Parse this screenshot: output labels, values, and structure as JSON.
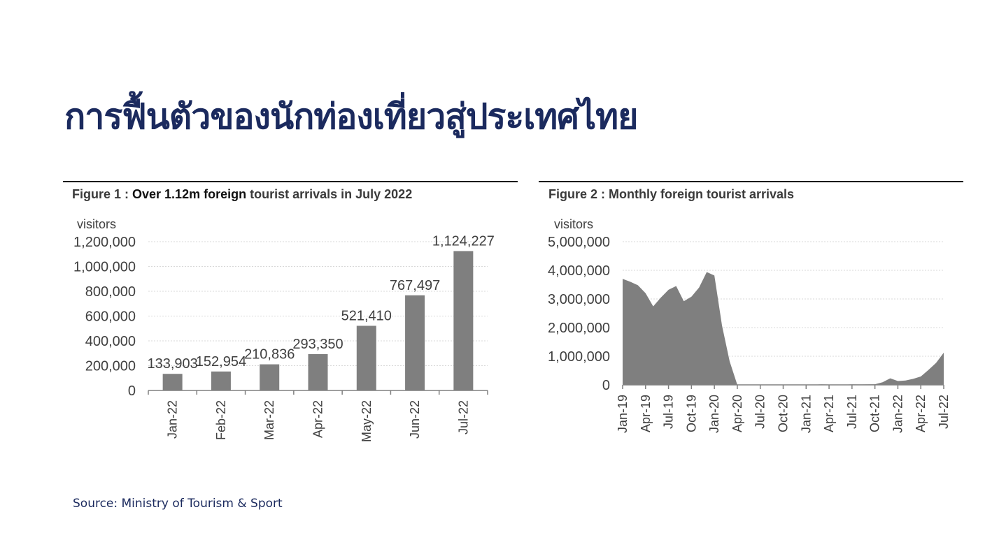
{
  "page": {
    "title": "การฟื้นตัวของนักท่องเที่ยวสู่ประเทศไทย",
    "source": "Source: Ministry of Tourism & Sport"
  },
  "colors": {
    "title": "#1b2a5e",
    "bar_fill": "#7f7f7f",
    "area_fill": "#7f7f7f",
    "gridline": "#d9d9d9",
    "text": "#404040"
  },
  "figure1": {
    "caption_prefix": "Figure 1 : ",
    "caption_bold": "Over 1.12m foreign",
    "caption_suffix": " tourist arrivals in July 2022"
  },
  "figure2": {
    "caption": "Figure 2 : Monthly foreign tourist arrivals"
  },
  "chart_data": [
    {
      "type": "bar",
      "title": "Figure 1 : Over 1.12m foreign tourist arrivals in July 2022",
      "ylabel": "visitors",
      "xlabel": "",
      "ylim": [
        0,
        1200000
      ],
      "yticks": [
        0,
        200000,
        400000,
        600000,
        800000,
        1000000,
        1200000
      ],
      "ytick_labels": [
        "0",
        "200,000",
        "400,000",
        "600,000",
        "800,000",
        "1,000,000",
        "1,200,000"
      ],
      "categories": [
        "Jan-22",
        "Feb-22",
        "Mar-22",
        "Apr-22",
        "May-22",
        "Jun-22",
        "Jul-22"
      ],
      "values": [
        133903,
        152954,
        210836,
        293350,
        521410,
        767497,
        1124227
      ],
      "data_labels": [
        "133,903",
        "152,954",
        "210,836",
        "293,350",
        "521,410",
        "767,497",
        "1,124,227"
      ],
      "grid": true,
      "legend": "none"
    },
    {
      "type": "area",
      "title": "Figure 2 : Monthly foreign tourist arrivals",
      "ylabel": "visitors",
      "xlabel": "",
      "ylim": [
        0,
        5000000
      ],
      "yticks": [
        0,
        1000000,
        2000000,
        3000000,
        4000000,
        5000000
      ],
      "ytick_labels": [
        "0",
        "1,000,000",
        "2,000,000",
        "3,000,000",
        "4,000,000",
        "5,000,000"
      ],
      "x": [
        "Jan-19",
        "Feb-19",
        "Mar-19",
        "Apr-19",
        "May-19",
        "Jun-19",
        "Jul-19",
        "Aug-19",
        "Sep-19",
        "Oct-19",
        "Nov-19",
        "Dec-19",
        "Jan-20",
        "Feb-20",
        "Mar-20",
        "Apr-20",
        "May-20",
        "Jun-20",
        "Jul-20",
        "Aug-20",
        "Sep-20",
        "Oct-20",
        "Nov-20",
        "Dec-20",
        "Jan-21",
        "Feb-21",
        "Mar-21",
        "Apr-21",
        "May-21",
        "Jun-21",
        "Jul-21",
        "Aug-21",
        "Sep-21",
        "Oct-21",
        "Nov-21",
        "Dec-21",
        "Jan-22",
        "Feb-22",
        "Mar-22",
        "Apr-22",
        "May-22",
        "Jun-22",
        "Jul-22"
      ],
      "x_tick_labels": [
        "Jan-19",
        "Apr-19",
        "Jul-19",
        "Oct-19",
        "Jan-20",
        "Apr-20",
        "Jul-20",
        "Oct-20",
        "Jan-21",
        "Apr-21",
        "Jul-21",
        "Oct-21",
        "Jan-22",
        "Apr-22",
        "Jul-22"
      ],
      "values": [
        3700000,
        3600000,
        3480000,
        3200000,
        2740000,
        3050000,
        3320000,
        3450000,
        2920000,
        3080000,
        3400000,
        3940000,
        3820000,
        2070000,
        820000,
        0,
        0,
        0,
        0,
        0,
        0,
        1200,
        2500,
        6500,
        7700,
        6200,
        19500,
        13500,
        5300,
        5500,
        18000,
        15500,
        16900,
        21000,
        91000,
        230000,
        133903,
        152954,
        210836,
        293350,
        521410,
        767497,
        1124227
      ],
      "grid": true,
      "legend": "none"
    }
  ]
}
